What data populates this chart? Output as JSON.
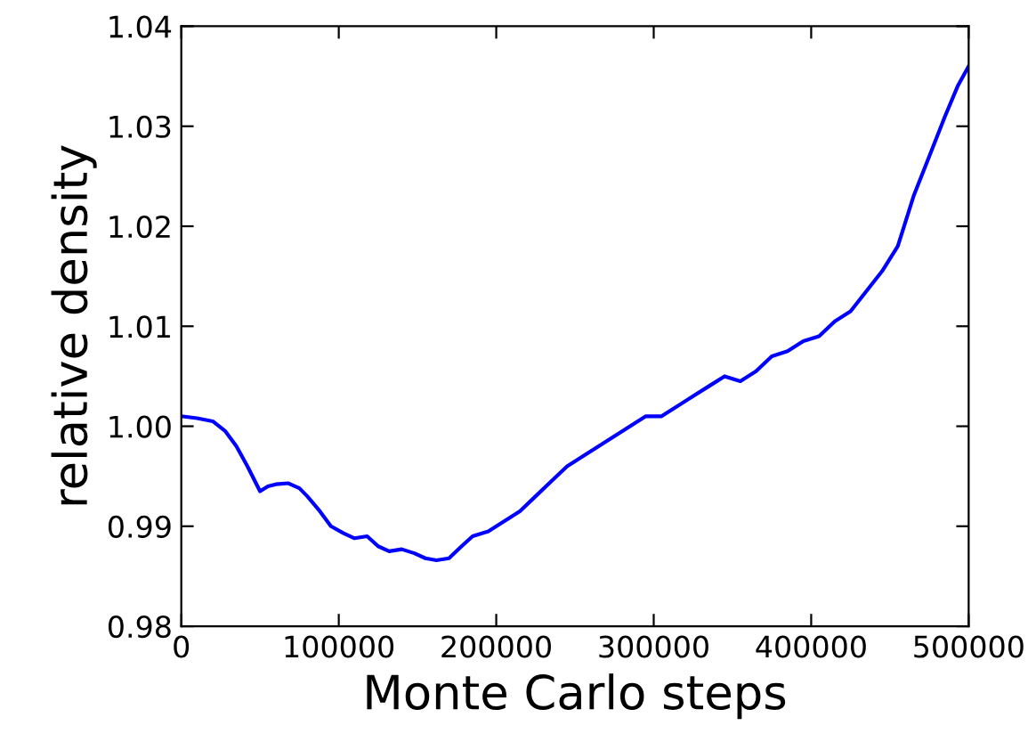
{
  "chart_data": {
    "type": "line",
    "xlabel": "Monte Carlo steps",
    "ylabel": "relative density",
    "xlim": [
      0,
      500000
    ],
    "xticks": [
      0,
      100000,
      200000,
      300000,
      400000,
      500000
    ],
    "ylim": [
      0.98,
      1.04
    ],
    "yticks": [
      {
        "value": 0.98,
        "label": "0.98"
      },
      {
        "value": 0.99,
        "label": "0.99"
      },
      {
        "value": 1.0,
        "label": "1.00"
      },
      {
        "value": 1.01,
        "label": "1.01"
      },
      {
        "value": 1.02,
        "label": "1.02"
      },
      {
        "value": 1.03,
        "label": "1.03"
      },
      {
        "value": 1.04,
        "label": "1.04"
      }
    ],
    "grid": false,
    "line_style": "solid",
    "marker": "none",
    "x": [
      0,
      10000,
      20000,
      28000,
      35000,
      42000,
      50000,
      55000,
      60000,
      68000,
      75000,
      80000,
      88000,
      95000,
      103000,
      110000,
      118000,
      125000,
      132000,
      140000,
      148000,
      155000,
      162000,
      170000,
      178000,
      185000,
      195000,
      205000,
      215000,
      225000,
      235000,
      245000,
      255000,
      265000,
      275000,
      285000,
      295000,
      305000,
      315000,
      325000,
      335000,
      345000,
      355000,
      365000,
      375000,
      385000,
      395000,
      405000,
      415000,
      425000,
      435000,
      445000,
      455000,
      465000,
      475000,
      485000,
      493000,
      500000
    ],
    "series": [
      {
        "color": "#0000ff",
        "values": [
          1.001,
          1.0008,
          1.0005,
          0.9995,
          0.998,
          0.996,
          0.9935,
          0.994,
          0.9942,
          0.9943,
          0.9938,
          0.993,
          0.9915,
          0.99,
          0.9893,
          0.9888,
          0.989,
          0.988,
          0.9875,
          0.9877,
          0.9873,
          0.9868,
          0.9866,
          0.9868,
          0.988,
          0.989,
          0.9895,
          0.9905,
          0.9915,
          0.993,
          0.9945,
          0.996,
          0.997,
          0.998,
          0.999,
          1.0,
          1.001,
          1.001,
          1.002,
          1.003,
          1.004,
          1.005,
          1.0045,
          1.0055,
          1.007,
          1.0075,
          1.0085,
          1.009,
          1.0105,
          1.0115,
          1.0135,
          1.0155,
          1.018,
          1.023,
          1.027,
          1.031,
          1.034,
          1.036
        ]
      }
    ]
  }
}
